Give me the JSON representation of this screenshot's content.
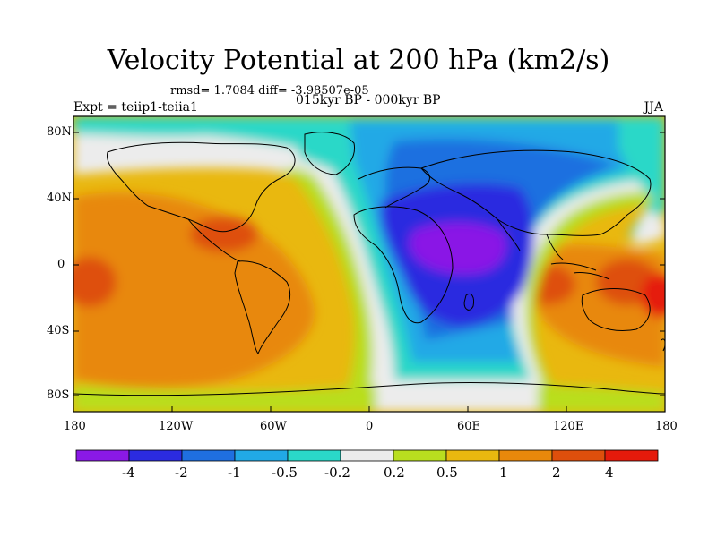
{
  "title": "Velocity Potential at 200 hPa (km2/s)",
  "stats_line": "rmsd= 1.7084 diff= -3.98507e-05",
  "left_label": "Expt = teiip1-teiia1",
  "center_label": "015kyr BP - 000kyr BP",
  "right_label": "JJA",
  "lat_ticks": [
    "80N",
    "40N",
    "0",
    "40S",
    "80S"
  ],
  "lon_ticks": [
    "180",
    "120W",
    "60W",
    "0",
    "60E",
    "120E",
    "180"
  ],
  "colorbar": {
    "colors": [
      "#8a19e6",
      "#2b2be0",
      "#1f6fe0",
      "#21a9e6",
      "#2ad8c8",
      "#ececec",
      "#b9de1f",
      "#e9b80f",
      "#e8880b",
      "#de4f0c",
      "#e51a0b"
    ],
    "labels": [
      "-4",
      "-2",
      "-1",
      "-0.5",
      "-0.2",
      "0.2",
      "0.5",
      "1",
      "2",
      "4"
    ]
  }
}
